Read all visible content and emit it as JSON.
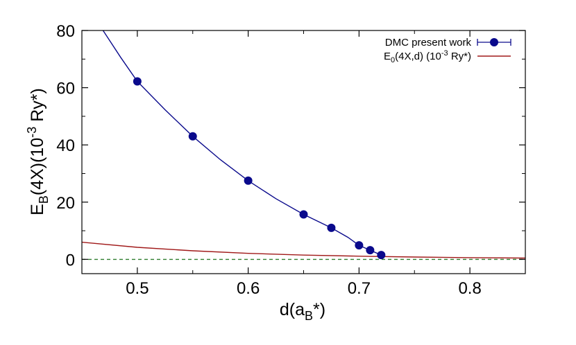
{
  "chart_data": {
    "type": "line",
    "title": "",
    "xlabel": {
      "main": "d(a",
      "sub": "B",
      "tail": "*)"
    },
    "ylabel": {
      "main": "E",
      "sub": "B",
      "mid": "(4X)(10",
      "sup": "-3",
      "tail": " Ry*)"
    },
    "xlim": [
      0.45,
      0.85
    ],
    "ylim": [
      -5,
      80
    ],
    "xticks": [
      0.5,
      0.6,
      0.7,
      0.8
    ],
    "xtick_labels": [
      "0.5",
      "0.6",
      "0.7",
      "0.8"
    ],
    "yticks": [
      0,
      20,
      40,
      60,
      80
    ],
    "ytick_labels": [
      "0",
      "20",
      "40",
      "60",
      "80"
    ],
    "grid": false,
    "legend_position": "top-right",
    "series": [
      {
        "name": "DMC present work",
        "style": "points-with-errorbars",
        "color": "#0a0a8c",
        "x": [
          0.5,
          0.55,
          0.6,
          0.65,
          0.675,
          0.7,
          0.71,
          0.72
        ],
        "y": [
          62.2,
          43.0,
          27.5,
          15.7,
          11.0,
          4.9,
          3.2,
          1.5
        ]
      },
      {
        "name": "fit-curve",
        "style": "line",
        "color": "#0a0a8c",
        "x": [
          0.455,
          0.47,
          0.485,
          0.5,
          0.525,
          0.55,
          0.575,
          0.6,
          0.625,
          0.65,
          0.675,
          0.69,
          0.7,
          0.71,
          0.72
        ],
        "y": [
          88.0,
          79.5,
          70.6,
          62.2,
          52.3,
          43.0,
          34.8,
          27.5,
          21.2,
          15.7,
          11.0,
          7.7,
          4.9,
          3.2,
          1.5
        ]
      },
      {
        "name": {
          "main": "E",
          "sub": "0",
          "mid": "(4X,d) (10",
          "sup": "-3",
          "tail": " Ry*)"
        },
        "style": "line",
        "color": "#a01818",
        "x": [
          0.45,
          0.5,
          0.55,
          0.6,
          0.65,
          0.7,
          0.75,
          0.8,
          0.85
        ],
        "y": [
          6.0,
          4.2,
          3.0,
          2.1,
          1.5,
          1.1,
          0.8,
          0.6,
          0.45
        ]
      },
      {
        "name": "zero-line",
        "style": "dashed",
        "color": "#2e7d2e",
        "x": [
          0.45,
          0.85
        ],
        "y": [
          0,
          0
        ]
      }
    ]
  }
}
